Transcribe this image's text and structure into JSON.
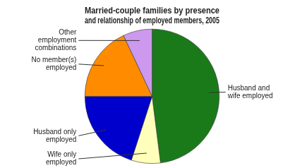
{
  "chart_data": {
    "type": "pie",
    "title": "Married-couple families by presence\nand relationship of employed members, 2005",
    "categories": [
      "Husband and\nwife employed",
      "Wife only\nemployed",
      "Husband only\nemployed",
      "No member(s)\nemployed",
      "Other\nemployment\ncombinations"
    ],
    "values": [
      48.0,
      7.0,
      20.0,
      18.0,
      7.0
    ],
    "colors": [
      "#1a7a1a",
      "#ffffbb",
      "#0000cc",
      "#ff8c00",
      "#cc99ee"
    ]
  }
}
